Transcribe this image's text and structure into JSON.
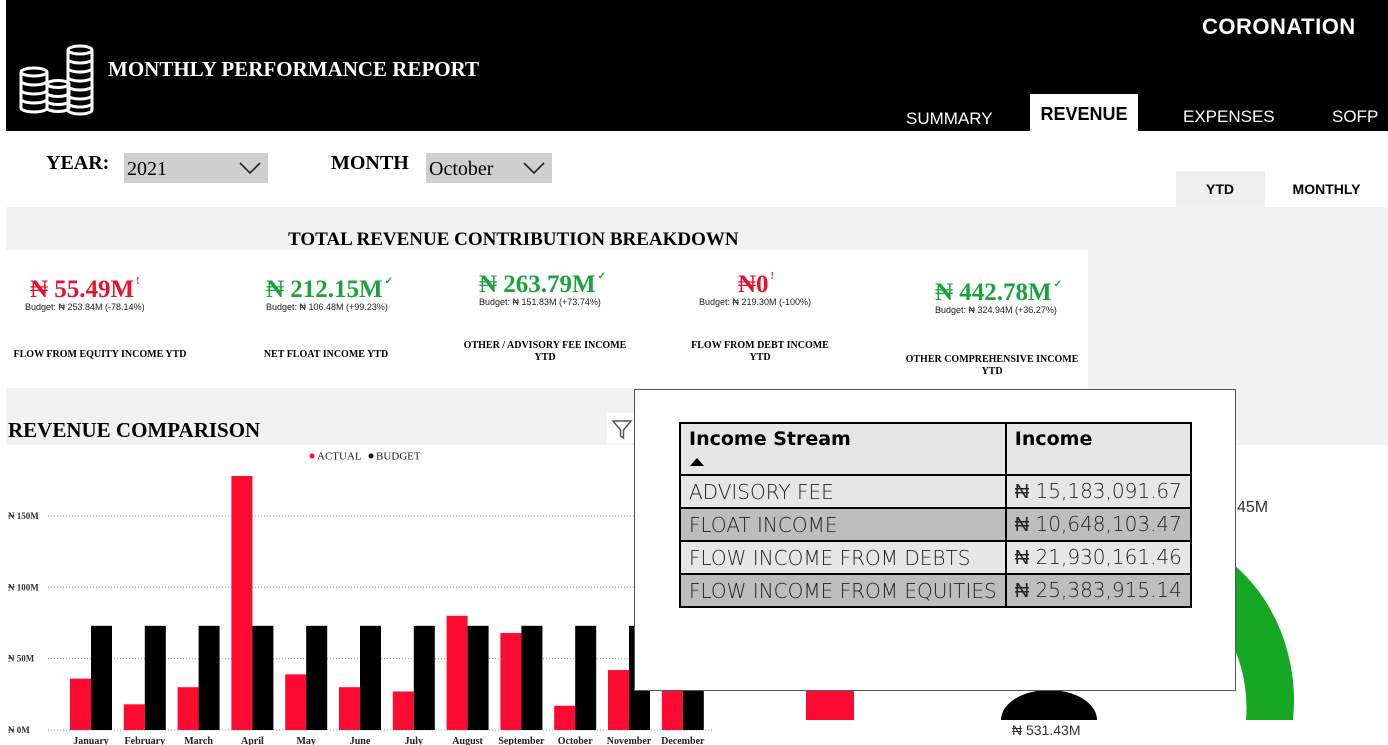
{
  "header": {
    "title": "MONTHLY PERFORMANCE REPORT",
    "brand": "CORONATION",
    "tabs": [
      "SUMMARY",
      "REVENUE",
      "EXPENSES",
      "SOFP"
    ],
    "active_tab": "REVENUE"
  },
  "filters": {
    "year_label": "YEAR:",
    "year_value": "2021",
    "month_label": "MONTH",
    "month_value": "October"
  },
  "toggle": {
    "ytd": "YTD",
    "monthly": "MONTHLY"
  },
  "breakdown": {
    "title": "TOTAL REVENUE CONTRIBUTION BREAKDOWN",
    "kpis": [
      {
        "value": "₦ 55.49M",
        "budget": "Budget: ₦ 253.84M (-78.14%)",
        "label": "FLOW FROM EQUITY INCOME YTD",
        "status": "below",
        "marker": "!"
      },
      {
        "value": "₦ 212.15M",
        "budget": "Budget: ₦ 106.48M (+99.23%)",
        "label": "NET FLOAT INCOME YTD",
        "status": "above",
        "marker": "✓"
      },
      {
        "value": "₦ 263.79M",
        "budget": "Budget: ₦ 151.83M (+73.74%)",
        "label": "OTHER / ADVISORY FEE INCOME YTD",
        "status": "above",
        "marker": "✓"
      },
      {
        "value": "₦0",
        "budget": "Budget: ₦ 219.30M (-100%)",
        "label": "FLOW FROM DEBT INCOME YTD",
        "status": "below",
        "marker": "!"
      },
      {
        "value": "₦ 442.78M",
        "budget": "Budget: ₦ 324.94M (+36.27%)",
        "label": "OTHER COMPREHENSIVE INCOME YTD",
        "status": "above",
        "marker": "✓"
      }
    ]
  },
  "revenue_chart": {
    "title": "REVENUE COMPARISON"
  },
  "chart_data": {
    "type": "bar",
    "title": "REVENUE COMPARISON",
    "categories": [
      "January",
      "February",
      "March",
      "April",
      "May",
      "June",
      "July",
      "August",
      "September",
      "October",
      "November",
      "December"
    ],
    "series": [
      {
        "name": "ACTUAL",
        "values": [
          36,
          18,
          30,
          178,
          39,
          30,
          27,
          80,
          68,
          17,
          42,
          45
        ]
      },
      {
        "name": "BUDGET",
        "values": [
          73,
          73,
          73,
          73,
          73,
          73,
          73,
          73,
          73,
          73,
          73,
          73
        ]
      }
    ],
    "y_ticks": [
      {
        "v": 0,
        "label": "₦ 0M"
      },
      {
        "v": 50,
        "label": "₦ 50M"
      },
      {
        "v": 100,
        "label": "₦ 100M"
      },
      {
        "v": 150,
        "label": "₦ 150M"
      }
    ],
    "ylim": [
      0,
      185
    ],
    "legend_position": "top-center",
    "grid": true,
    "colors": {
      "ACTUAL": "#ff0a33",
      "BUDGET": "#000000"
    }
  },
  "gauge": {
    "label_top_right": "45M",
    "label_bottom": "₦ 531.43M",
    "colors": {
      "red": "#ff0a33",
      "black": "#000000",
      "green": "#16a822"
    }
  },
  "tooltip_table": {
    "headers": [
      "Income Stream",
      "Income"
    ],
    "rows": [
      {
        "stream": "ADVISORY FEE",
        "income": "₦ 15,183,091.67"
      },
      {
        "stream": "FLOAT INCOME",
        "income": "₦ 10,648,103.47"
      },
      {
        "stream": "FLOW INCOME FROM DEBTS",
        "income": "₦ 21,930,161.46"
      },
      {
        "stream": "FLOW INCOME FROM EQUITIES",
        "income": "₦ 25,383,915.14"
      }
    ]
  },
  "icons": [
    "coins-icon",
    "chevron-down-icon",
    "filter-icon",
    "sort-ascending-icon"
  ]
}
